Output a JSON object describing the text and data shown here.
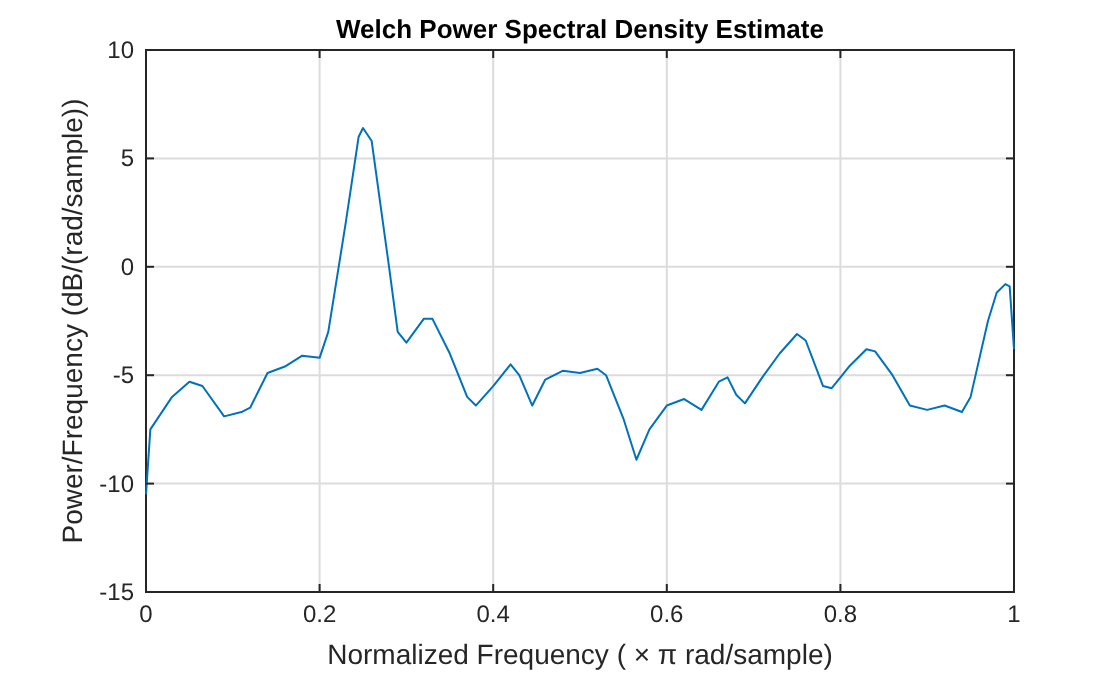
{
  "chart_data": {
    "type": "line",
    "title": "Welch Power Spectral Density Estimate",
    "xlabel": "Normalized Frequency  ( × π rad/sample)",
    "ylabel": "Power/Frequency (dB/(rad/sample))",
    "xlim": [
      0,
      1
    ],
    "xticks": [
      0,
      0.2,
      0.4,
      0.6,
      0.8,
      1
    ],
    "ylim": [
      -15,
      10
    ],
    "yticks": [
      -15,
      -10,
      -5,
      0,
      5,
      10
    ],
    "grid": true,
    "series": [
      {
        "color": "#0072bd",
        "x": [
          0,
          0.005,
          0.03,
          0.05,
          0.065,
          0.09,
          0.11,
          0.12,
          0.14,
          0.16,
          0.18,
          0.2,
          0.21,
          0.23,
          0.245,
          0.25,
          0.26,
          0.28,
          0.29,
          0.3,
          0.32,
          0.33,
          0.35,
          0.37,
          0.38,
          0.4,
          0.42,
          0.43,
          0.445,
          0.46,
          0.48,
          0.5,
          0.52,
          0.53,
          0.55,
          0.565,
          0.58,
          0.6,
          0.62,
          0.64,
          0.66,
          0.67,
          0.68,
          0.69,
          0.71,
          0.73,
          0.75,
          0.76,
          0.78,
          0.79,
          0.81,
          0.83,
          0.84,
          0.86,
          0.88,
          0.9,
          0.92,
          0.94,
          0.95,
          0.97,
          0.98,
          0.99,
          0.995,
          1
        ],
        "values": [
          -10.5,
          -7.5,
          -6,
          -5.3,
          -5.5,
          -6.9,
          -6.7,
          -6.5,
          -4.9,
          -4.6,
          -4.1,
          -4.2,
          -3,
          2,
          6,
          6.4,
          5.8,
          0,
          -3,
          -3.5,
          -2.4,
          -2.4,
          -4,
          -6,
          -6.4,
          -5.5,
          -4.5,
          -5,
          -6.4,
          -5.2,
          -4.8,
          -4.9,
          -4.7,
          -5,
          -7,
          -8.9,
          -7.5,
          -6.4,
          -6.1,
          -6.6,
          -5.3,
          -5.1,
          -5.9,
          -6.3,
          -5.1,
          -4,
          -3.1,
          -3.4,
          -5.5,
          -5.6,
          -4.6,
          -3.8,
          -3.9,
          -5,
          -6.4,
          -6.6,
          -6.4,
          -6.7,
          -6,
          -2.5,
          -1.2,
          -0.8,
          -0.9,
          -3.8
        ]
      }
    ]
  }
}
